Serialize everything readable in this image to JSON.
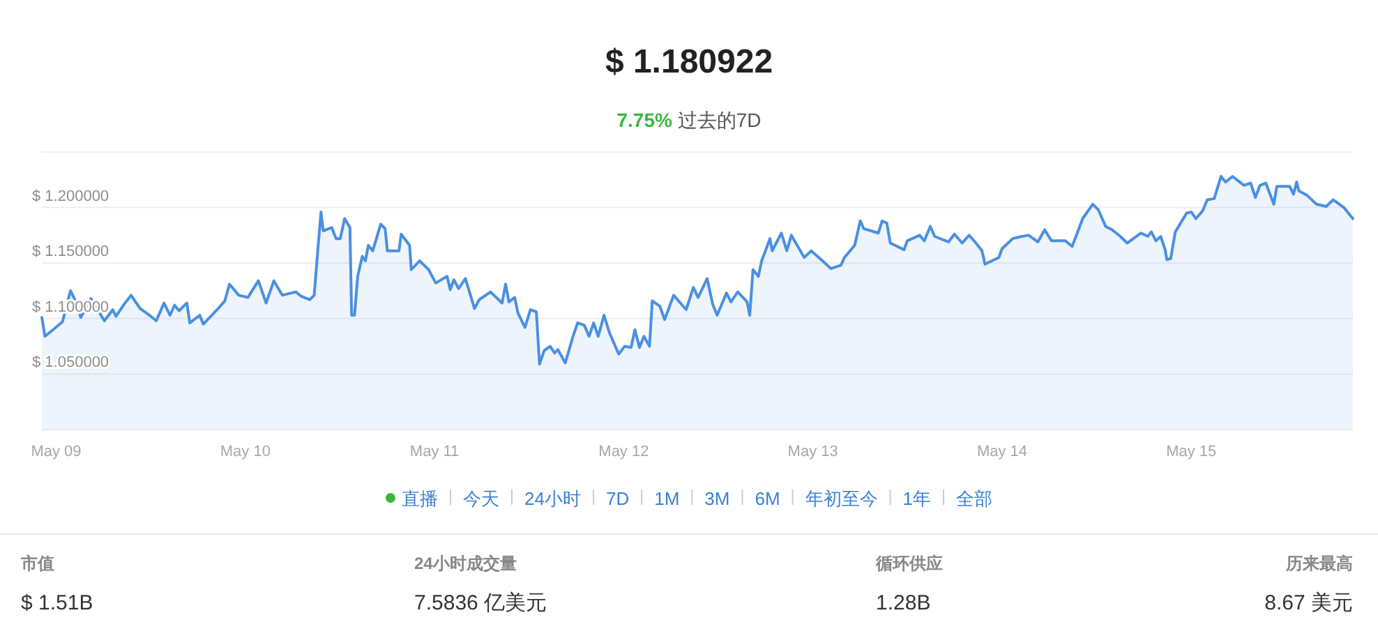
{
  "chart_data": [
    {
      "type": "area",
      "title": "$ 1.180922",
      "subtitle": "7.75% 过去的7D",
      "x": [
        "--05-08T22:11",
        "--05-08T22:35",
        "--05-08T23:37",
        "--05-09T00:48",
        "--05-09T01:49",
        "--05-09T02:31",
        "--05-09T03:07",
        "--05-09T04:24",
        "--05-09T06:07",
        "--05-09T07:11",
        "--05-09T07:35",
        "--05-09T08:38",
        "--05-09T09:30",
        "--05-09T10:39",
        "--05-09T11:50",
        "--05-09T12:42",
        "--05-09T13:41",
        "--05-09T14:27",
        "--05-09T15:01",
        "--05-09T15:36",
        "--05-09T16:35",
        "--05-09T16:57",
        "--05-09T18:13",
        "--05-09T18:40",
        "--05-09T20:33",
        "--05-09T21:24",
        "--05-09T21:59",
        "--05-09T23:10",
        "--05-10T00:19",
        "--05-10T01:39",
        "--05-10T02:38",
        "--05-10T03:37",
        "--05-10T04:41",
        "--05-10T06:24",
        "--05-10T07:06",
        "--05-10T08:10",
        "--05-10T08:44",
        "--05-10T09:09",
        "--05-10T09:36",
        "--05-10T09:53",
        "--05-10T10:57",
        "--05-10T11:31",
        "--05-10T12:03",
        "--05-10T12:35",
        "--05-10T13:16",
        "--05-10T13:29",
        "--05-10T13:51",
        "--05-10T14:15",
        "--05-10T14:50",
        "--05-10T15:14",
        "--05-10T15:36",
        "--05-10T16:10",
        "--05-10T17:10",
        "--05-10T17:44",
        "--05-10T18:01",
        "--05-10T19:29",
        "--05-10T19:46",
        "--05-10T20:50",
        "--05-10T21:03",
        "--05-10T22:06",
        "--05-10T23:15",
        "--05-11T00:09",
        "--05-11T01:35",
        "--05-11T02:00",
        "--05-11T02:27",
        "--05-11T03:03",
        "--05-11T03:55",
        "--05-11T04:39",
        "--05-11T05:04",
        "--05-11T05:40",
        "--05-11T07:06",
        "--05-11T08:34",
        "--05-11T09:01",
        "--05-11T09:26",
        "--05-11T10:10",
        "--05-11T10:35",
        "--05-11T11:28",
        "--05-11T12:10",
        "--05-11T12:55",
        "--05-11T13:19",
        "--05-11T13:54",
        "--05-11T14:40",
        "--05-11T15:14",
        "--05-11T15:39",
        "--05-11T16:35",
        "--05-11T17:34",
        "--05-11T18:09",
        "--05-11T19:00",
        "--05-11T19:36",
        "--05-11T20:11",
        "--05-11T20:46",
        "--05-11T21:30",
        "--05-11T22:12",
        "--05-11T23:22",
        "--05-12T00:07",
        "--05-12T00:56",
        "--05-12T01:25",
        "--05-12T02:00",
        "--05-12T02:34",
        "--05-12T03:16",
        "--05-12T03:37",
        "--05-12T04:36",
        "--05-12T05:11",
        "--05-12T06:20",
        "--05-12T07:55",
        "--05-12T08:50",
        "--05-12T09:26",
        "--05-12T10:35",
        "--05-12T11:17",
        "--05-12T11:51",
        "--05-12T13:02",
        "--05-12T13:36",
        "--05-12T14:28",
        "--05-12T15:39",
        "--05-12T15:59",
        "--05-12T16:24",
        "--05-12T17:05",
        "--05-12T17:30",
        "--05-12T18:33",
        "--05-12T18:50",
        "--05-12T20:00",
        "--05-12T20:41",
        "--05-12T21:16",
        "--05-12T22:54",
        "--05-12T23:47",
        "--05-13T01:13",
        "--05-13T02:17",
        "--05-13T03:33",
        "--05-13T04:00",
        "--05-13T05:18",
        "--05-13T06:00",
        "--05-13T06:27",
        "--05-13T08:18",
        "--05-13T08:47",
        "--05-13T09:22",
        "--05-13T09:49",
        "--05-13T11:34",
        "--05-13T11:58",
        "--05-13T13:32",
        "--05-13T14:08",
        "--05-13T14:53",
        "--05-13T15:27",
        "--05-13T17:12",
        "--05-13T17:57",
        "--05-13T18:56",
        "--05-13T19:49",
        "--05-13T20:41",
        "--05-13T21:27",
        "--05-13T21:50",
        "--05-13T23:35",
        "--05-14T00:00",
        "--05-14T01:21",
        "--05-14T02:30",
        "--05-14T03:22",
        "--05-14T04:32",
        "--05-14T05:24",
        "--05-14T06:16",
        "--05-14T08:01",
        "--05-14T08:53",
        "--05-14T09:29",
        "--05-14T10:13",
        "--05-14T11:30",
        "--05-14T12:12",
        "--05-14T13:08",
        "--05-14T13:57",
        "--05-14T15:00",
        "--05-14T15:52",
        "--05-14T17:37",
        "--05-14T18:29",
        "--05-14T18:56",
        "--05-14T19:31",
        "--05-14T20:07",
        "--05-14T20:41",
        "--05-14T20:54",
        "--05-14T21:23",
        "--05-14T21:58",
        "--05-14T23:25",
        "--05-15T00:00",
        "--05-15T00:35",
        "--05-15T01:26",
        "--05-15T02:02",
        "--05-15T02:54",
        "--05-15T03:46",
        "--05-15T04:21",
        "--05-15T05:14",
        "--05-15T06:40",
        "--05-15T07:32",
        "--05-15T08:08",
        "--05-15T08:43",
        "--05-15T09:27",
        "--05-15T10:28",
        "--05-15T10:51",
        "--05-15T12:29",
        "--05-15T12:58",
        "--05-15T13:22",
        "--05-15T13:39",
        "--05-15T14:41",
        "--05-15T15:52",
        "--05-15T17:08",
        "--05-15T18:00",
        "--05-15T19:21",
        "--05-15T20:30"
      ],
      "series": [
        {
          "color": "#4a90e2",
          "values": [
            1.101,
            1.084,
            1.09,
            1.097,
            1.125,
            1.115,
            1.101,
            1.118,
            1.098,
            1.108,
            1.102,
            1.113,
            1.121,
            1.109,
            1.103,
            1.098,
            1.114,
            1.103,
            1.112,
            1.107,
            1.114,
            1.096,
            1.103,
            1.095,
            1.109,
            1.116,
            1.131,
            1.121,
            1.119,
            1.134,
            1.114,
            1.134,
            1.121,
            1.124,
            1.12,
            1.117,
            1.121,
            1.158,
            1.196,
            1.179,
            1.182,
            1.172,
            1.172,
            1.19,
            1.182,
            1.103,
            1.103,
            1.138,
            1.156,
            1.152,
            1.166,
            1.161,
            1.185,
            1.181,
            1.161,
            1.161,
            1.176,
            1.166,
            1.144,
            1.152,
            1.144,
            1.132,
            1.138,
            1.126,
            1.135,
            1.127,
            1.136,
            1.119,
            1.109,
            1.117,
            1.124,
            1.114,
            1.131,
            1.115,
            1.119,
            1.105,
            1.092,
            1.108,
            1.106,
            1.059,
            1.071,
            1.075,
            1.069,
            1.072,
            1.06,
            1.084,
            1.096,
            1.094,
            1.084,
            1.096,
            1.084,
            1.103,
            1.087,
            1.068,
            1.075,
            1.074,
            1.09,
            1.074,
            1.084,
            1.075,
            1.116,
            1.111,
            1.099,
            1.121,
            1.108,
            1.128,
            1.119,
            1.136,
            1.113,
            1.103,
            1.123,
            1.115,
            1.124,
            1.115,
            1.103,
            1.144,
            1.138,
            1.152,
            1.172,
            1.161,
            1.177,
            1.161,
            1.175,
            1.155,
            1.161,
            1.152,
            1.145,
            1.148,
            1.155,
            1.166,
            1.188,
            1.181,
            1.177,
            1.188,
            1.186,
            1.168,
            1.162,
            1.17,
            1.175,
            1.17,
            1.183,
            1.174,
            1.169,
            1.176,
            1.168,
            1.175,
            1.168,
            1.161,
            1.149,
            1.155,
            1.163,
            1.172,
            1.174,
            1.175,
            1.169,
            1.18,
            1.17,
            1.17,
            1.165,
            1.176,
            1.19,
            1.203,
            1.198,
            1.183,
            1.18,
            1.174,
            1.168,
            1.177,
            1.174,
            1.178,
            1.17,
            1.174,
            1.162,
            1.153,
            1.154,
            1.178,
            1.195,
            1.196,
            1.19,
            1.197,
            1.207,
            1.208,
            1.228,
            1.223,
            1.228,
            1.22,
            1.222,
            1.209,
            1.22,
            1.222,
            1.203,
            1.219,
            1.219,
            1.212,
            1.223,
            1.215,
            1.211,
            1.203,
            1.201,
            1.207,
            1.2,
            1.19
          ]
        }
      ],
      "xlim": [
        "--05-08T22:11",
        "--05-15T20:30"
      ],
      "xticks": [
        {
          "value": "--05-09",
          "label": "May 09"
        },
        {
          "value": "--05-10",
          "label": "May 10"
        },
        {
          "value": "--05-11",
          "label": "May 11"
        },
        {
          "value": "--05-12",
          "label": "May 12"
        },
        {
          "value": "--05-13",
          "label": "May 13"
        },
        {
          "value": "--05-14",
          "label": "May 14"
        },
        {
          "value": "--05-15",
          "label": "May 15"
        }
      ],
      "ylim": [
        1.0,
        1.25
      ],
      "yticks": [
        {
          "value": 1.0,
          "label": null
        },
        {
          "value": 1.05,
          "label": "$ 1.050000"
        },
        {
          "value": 1.1,
          "label": "$ 1.100000"
        },
        {
          "value": 1.15,
          "label": "$ 1.150000"
        },
        {
          "value": 1.2,
          "label": "$ 1.200000"
        },
        {
          "value": 1.25,
          "label": null
        }
      ],
      "grid": "y",
      "annotations": [
        "直播",
        "今天",
        "24小时",
        "7D",
        "1M",
        "3M",
        "6M",
        "年初至今",
        "1年",
        "全部"
      ]
    },
    {
      "type": "other",
      "annotations": [
        "市值",
        "$ 1.51B",
        "24小时成交量",
        "7.5836 亿美元",
        "循环供应",
        "1.28B",
        "历来最高",
        "8.67 美元"
      ]
    }
  ]
}
